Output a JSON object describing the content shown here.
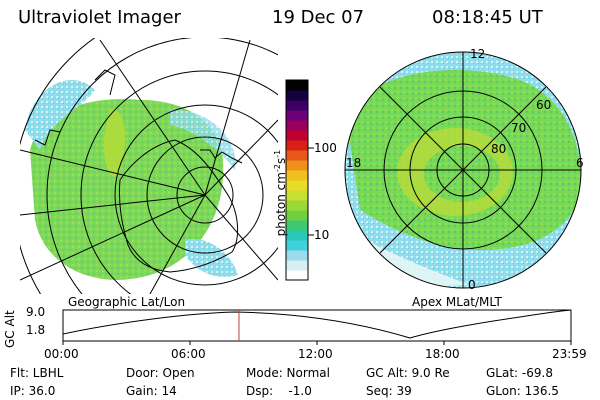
{
  "header": {
    "title": "Ultraviolet Imager",
    "date": "19 Dec 07",
    "time": "08:18:45 UT"
  },
  "left_map": {
    "caption": "Geographic Lat/Lon"
  },
  "right_map": {
    "caption": "Apex MLat/MLT",
    "mlt_labels": {
      "top": "12",
      "left": "18",
      "right": "6",
      "bottom": "0"
    },
    "lat_labels": [
      "60",
      "70",
      "80"
    ]
  },
  "colorbar": {
    "unit_label": "photon cm",
    "unit_exp1": "-2",
    "unit_s": "s",
    "unit_exp2": "-1",
    "tick_labels": [
      "100",
      "10"
    ],
    "colors": [
      "#ffffff",
      "#d8eef2",
      "#9adcec",
      "#3fd2dc",
      "#28c8b8",
      "#40c870",
      "#70d040",
      "#9cd838",
      "#c8e030",
      "#e8dc28",
      "#f0c020",
      "#f09018",
      "#e85818",
      "#d82018",
      "#c00030",
      "#98005c",
      "#6c0078",
      "#3c0064",
      "#14003c",
      "#000000"
    ]
  },
  "timeline": {
    "axis_label": "GC Alt",
    "y_max": "9.0",
    "y_min": "1.8",
    "x_ticks": [
      "00:00",
      "06:00",
      "12:00",
      "18:00",
      "23:59"
    ],
    "current_time_fraction": 0.3464,
    "marker_color": "#c04030"
  },
  "info": {
    "flt": "Flt: LBHL",
    "ip": "IP: 36.0",
    "door": "Door: Open",
    "gain": "Gain: 14",
    "mode": "Mode: Normal",
    "dsp": "Dsp:    -1.0",
    "gcalt": "GC Alt: 9.0 Re",
    "seq": "Seq: 39",
    "glat": "GLat: -69.8",
    "glon": "GLon: 136.5"
  }
}
